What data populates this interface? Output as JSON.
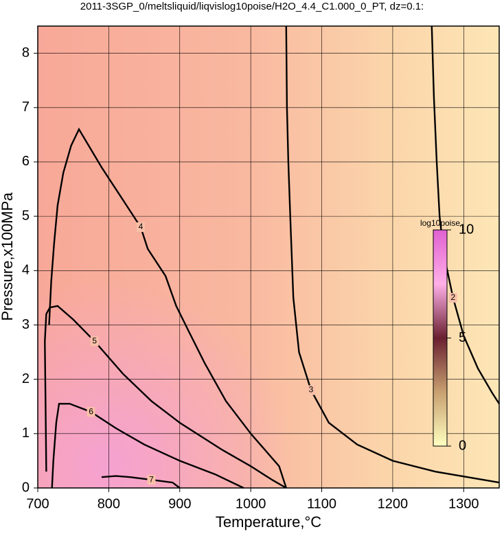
{
  "chart_data": {
    "type": "contour",
    "title": "2011-3SGP_0/meltsliquid/liqvislog10poise/H2O_4.4_C1.000_0_PT, dz=0.1:",
    "x_label": "Temperature,°C",
    "y_label": "Pressure,x100MPa",
    "xlim": [
      700,
      1350
    ],
    "ylim": [
      0,
      8.5
    ],
    "xticks": [
      700,
      800,
      900,
      1000,
      1100,
      1200,
      1300
    ],
    "yticks": [
      0,
      1,
      2,
      3,
      4,
      5,
      6,
      7,
      8
    ],
    "grid": true,
    "colorbar": {
      "label": "log10poise",
      "lim": [
        0,
        10
      ],
      "ticks": [
        0,
        5,
        10
      ],
      "colors": [
        "#ffffc0",
        "#c8a070",
        "#6a2030",
        "#ffb0e8",
        "#e060d0"
      ]
    },
    "contours": [
      {
        "level": 2,
        "x": [
          1255,
          1258,
          1262,
          1266,
          1272,
          1285,
          1300,
          1320,
          1340,
          1350
        ],
        "y": [
          8.5,
          7.2,
          6.0,
          5.0,
          4.3,
          3.5,
          2.8,
          2.2,
          1.75,
          1.55
        ]
      },
      {
        "level": 3,
        "x": [
          1050,
          1051,
          1053,
          1056,
          1060,
          1068,
          1085,
          1110,
          1150,
          1200,
          1260,
          1350
        ],
        "y": [
          8.5,
          7.0,
          6.0,
          4.9,
          3.5,
          2.5,
          1.8,
          1.2,
          0.8,
          0.5,
          0.3,
          0.1
        ]
      },
      {
        "level": 4,
        "x": [
          716,
          719,
          723,
          728,
          736,
          747,
          758,
          790,
          820,
          845,
          855,
          880,
          895,
          912,
          935,
          965,
          1000,
          1040,
          1050
        ],
        "y": [
          3.0,
          3.8,
          4.5,
          5.2,
          5.8,
          6.3,
          6.6,
          5.9,
          5.3,
          4.8,
          4.4,
          3.9,
          3.35,
          2.9,
          2.3,
          1.6,
          1.0,
          0.4,
          0.0
        ]
      },
      {
        "level": 5,
        "x": [
          712,
          711,
          710,
          712,
          717,
          728,
          750,
          780,
          820,
          860,
          900,
          960,
          1000,
          1030,
          1050
        ],
        "y": [
          0.3,
          1.5,
          2.7,
          3.2,
          3.32,
          3.35,
          3.1,
          2.7,
          2.1,
          1.6,
          1.2,
          0.7,
          0.4,
          0.15,
          0.0
        ]
      },
      {
        "level": 6,
        "x": [
          720,
          722,
          726,
          730,
          745,
          775,
          810,
          850,
          900,
          950,
          990
        ],
        "y": [
          0.0,
          0.5,
          1.2,
          1.55,
          1.55,
          1.4,
          1.1,
          0.8,
          0.5,
          0.25,
          0.0
        ]
      },
      {
        "level": 7,
        "x": [
          790,
          810,
          830,
          860,
          890,
          900
        ],
        "y": [
          0.2,
          0.22,
          0.2,
          0.15,
          0.1,
          0.0
        ]
      }
    ]
  }
}
